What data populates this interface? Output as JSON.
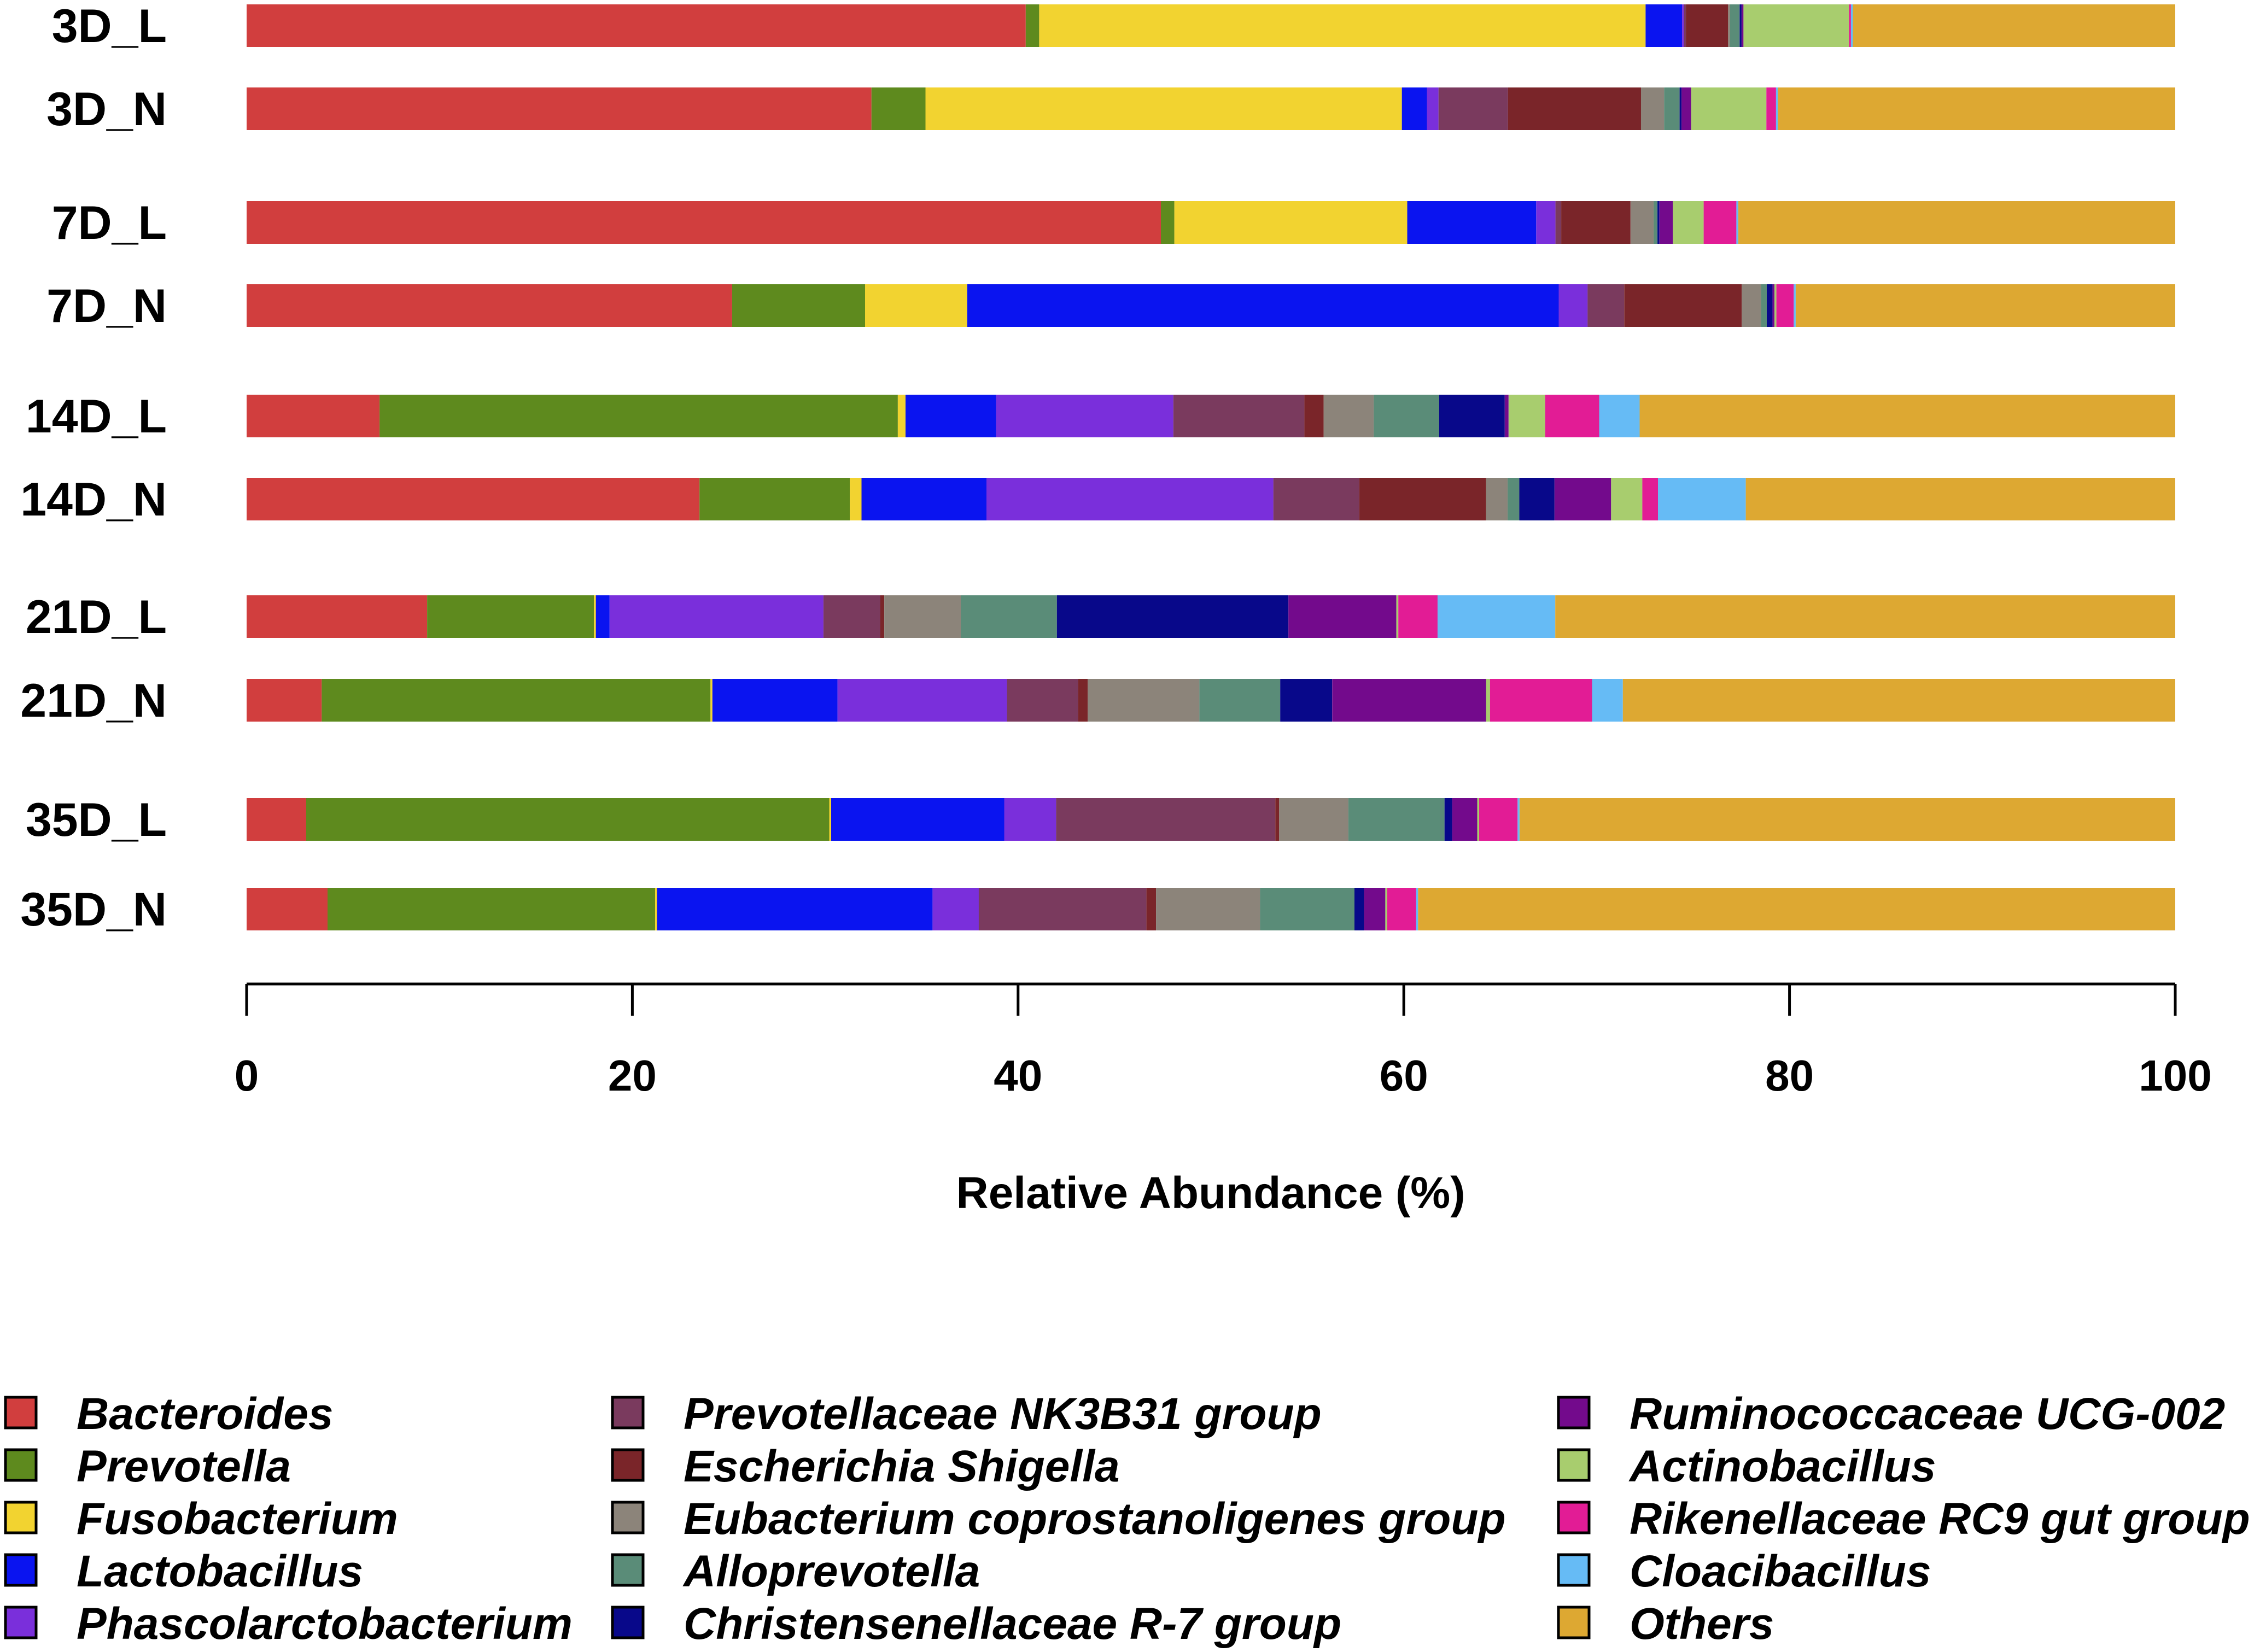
{
  "chart_data": {
    "type": "bar",
    "orientation": "horizontal",
    "stacked": true,
    "xlabel": "Relative Abundance (%)",
    "xlim": [
      0,
      100
    ],
    "xticks": [
      "0",
      "20",
      "40",
      "60",
      "80",
      "100"
    ],
    "grid": false,
    "legend_position": "bottom",
    "categories": [
      "3D_L",
      "3D_N",
      "7D_L",
      "7D_N",
      "14D_L",
      "14D_N",
      "21D_L",
      "21D_N",
      "35D_L",
      "35D_N"
    ],
    "series": [
      {
        "name": "Bacteroides",
        "color": "#D13E3E",
        "values": [
          40.6,
          32.4,
          47.5,
          25.2,
          6.9,
          23.2,
          9.2,
          3.9,
          3.1,
          4.2
        ]
      },
      {
        "name": "Prevotella",
        "color": "#5E8A1E",
        "values": [
          0.7,
          2.8,
          0.7,
          6.9,
          26.9,
          7.7,
          8.5,
          20.2,
          27.2,
          17.0
        ]
      },
      {
        "name": "Fusobacterium",
        "color": "#F2D330",
        "values": [
          31.6,
          24.7,
          12.1,
          5.3,
          0.4,
          0.6,
          0.1,
          0.1,
          0.1,
          0.1
        ]
      },
      {
        "name": "Lactobacillus",
        "color": "#0A14F0",
        "values": [
          1.9,
          1.3,
          6.7,
          30.7,
          4.7,
          6.4,
          0.7,
          6.5,
          9.0,
          14.3
        ]
      },
      {
        "name": "Phascolarctobacterium",
        "color": "#7A2FDB",
        "values": [
          0.1,
          0.6,
          1.0,
          1.5,
          9.2,
          14.7,
          10.9,
          8.8,
          2.7,
          2.4
        ]
      },
      {
        "name": "Prevotellaceae NK3B31 group",
        "color": "#7A3A5E",
        "values": [
          0.1,
          3.6,
          0.3,
          1.9,
          6.8,
          4.4,
          2.9,
          3.7,
          11.4,
          8.7
        ]
      },
      {
        "name": "Escherichia Shigella",
        "color": "#7A2529",
        "values": [
          2.2,
          6.9,
          3.6,
          6.1,
          1.0,
          6.5,
          0.2,
          0.5,
          0.2,
          0.5
        ]
      },
      {
        "name": "Eubacterium coprostanoligenes group",
        "color": "#8C847A",
        "values": [
          0.1,
          1.2,
          1.2,
          1.0,
          2.6,
          1.1,
          3.9,
          5.8,
          3.6,
          5.4
        ]
      },
      {
        "name": "Alloprevotella",
        "color": "#5A8C78",
        "values": [
          0.5,
          0.8,
          0.2,
          0.3,
          3.4,
          0.6,
          4.9,
          4.2,
          5.0,
          4.9
        ]
      },
      {
        "name": "Christensenellaceae R-7 group",
        "color": "#08088A",
        "values": [
          0.1,
          0.1,
          0.1,
          0.3,
          3.4,
          1.8,
          11.8,
          2.7,
          0.4,
          0.5
        ]
      },
      {
        "name": "Ruminococcaceae UCG-002",
        "color": "#730A8C",
        "values": [
          0.1,
          0.5,
          0.7,
          0.1,
          0.2,
          2.9,
          5.5,
          8.0,
          1.3,
          1.1
        ]
      },
      {
        "name": "Actinobacillus",
        "color": "#A8CD6E",
        "values": [
          5.5,
          3.9,
          1.6,
          0.1,
          1.9,
          1.6,
          0.1,
          0.2,
          0.1,
          0.1
        ]
      },
      {
        "name": "Rikenellaceae RC9 gut group",
        "color": "#E21C95",
        "values": [
          0.1,
          0.5,
          1.7,
          0.9,
          2.8,
          0.8,
          2.0,
          5.3,
          2.0,
          1.5
        ]
      },
      {
        "name": "Cloacibacillus",
        "color": "#66BBF5",
        "values": [
          0.1,
          0.1,
          0.1,
          0.1,
          2.1,
          4.5,
          6.0,
          1.6,
          0.1,
          0.1
        ]
      },
      {
        "name": "Others",
        "color": "#DDA832",
        "values": [
          16.8,
          20.6,
          22.7,
          19.7,
          27.8,
          22.0,
          31.6,
          28.7,
          34.1,
          39.3
        ]
      }
    ]
  }
}
